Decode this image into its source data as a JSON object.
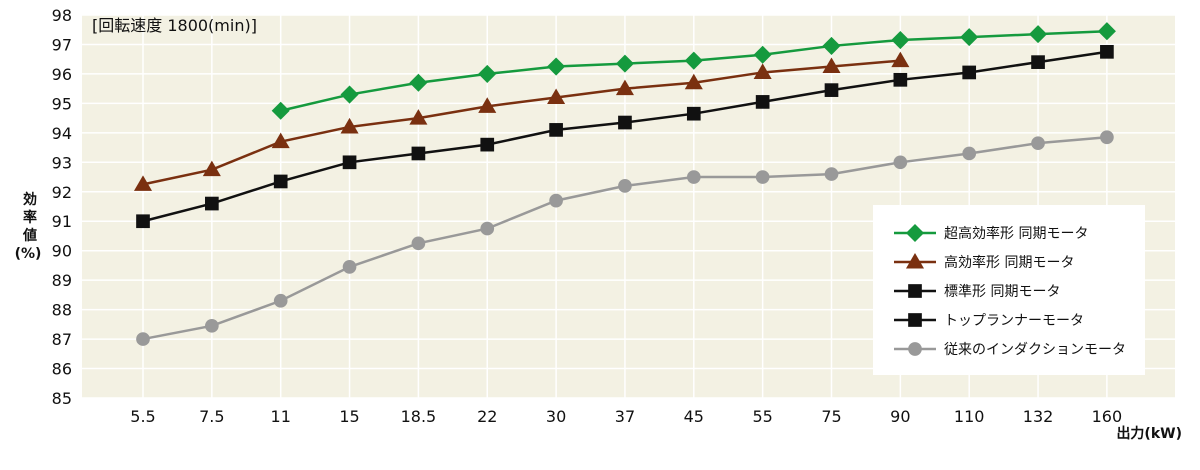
{
  "chart_data": {
    "type": "line",
    "title": "",
    "note": "[回転速度 1800(min)]",
    "xlabel": "出力(kW)",
    "ylabel": "効率値(%)",
    "ylabel_chars": [
      "効",
      "率",
      "値",
      "(%)"
    ],
    "ylim": [
      85,
      98
    ],
    "yticks": [
      85,
      86,
      87,
      88,
      89,
      90,
      91,
      92,
      93,
      94,
      95,
      96,
      97,
      98
    ],
    "categories": [
      "5.5",
      "7.5",
      "11",
      "15",
      "18.5",
      "22",
      "30",
      "37",
      "45",
      "55",
      "75",
      "90",
      "110",
      "132",
      "160"
    ],
    "grid": true,
    "legend_position": "right",
    "background_color": "#f3f1e3",
    "series": [
      {
        "name": "超高効率形 同期モータ",
        "color": "#159a3e",
        "marker": "diamond",
        "values": [
          null,
          null,
          94.75,
          95.3,
          95.7,
          96.0,
          96.25,
          96.35,
          96.45,
          96.65,
          96.95,
          97.15,
          97.25,
          97.35,
          97.45
        ]
      },
      {
        "name": "高効率形 同期モータ",
        "color": "#7a3010",
        "marker": "triangle",
        "values": [
          92.25,
          92.75,
          93.7,
          94.2,
          94.5,
          94.9,
          95.2,
          95.5,
          95.7,
          96.05,
          96.25,
          96.45,
          null,
          null,
          null
        ]
      },
      {
        "name": "標準形 同期モータ",
        "color": "#111111",
        "marker": "square",
        "values": [
          91.0,
          91.6,
          92.35,
          93.0,
          93.3,
          93.6,
          94.1,
          94.35,
          94.65,
          95.05,
          95.45,
          95.8,
          96.05,
          96.4,
          96.75
        ]
      },
      {
        "name": "トップランナーモータ",
        "color": "#111111",
        "marker": "square",
        "values": [
          91.0,
          91.6,
          92.35,
          93.0,
          93.3,
          93.6,
          94.1,
          94.35,
          94.65,
          95.05,
          95.45,
          95.8,
          96.05,
          96.4,
          96.75
        ]
      },
      {
        "name": "従来のインダクションモータ",
        "color": "#999999",
        "marker": "circle",
        "values": [
          87.0,
          87.45,
          88.3,
          89.45,
          90.25,
          90.75,
          91.7,
          92.2,
          92.5,
          92.5,
          92.6,
          93.0,
          93.3,
          93.65,
          93.85
        ]
      }
    ]
  }
}
